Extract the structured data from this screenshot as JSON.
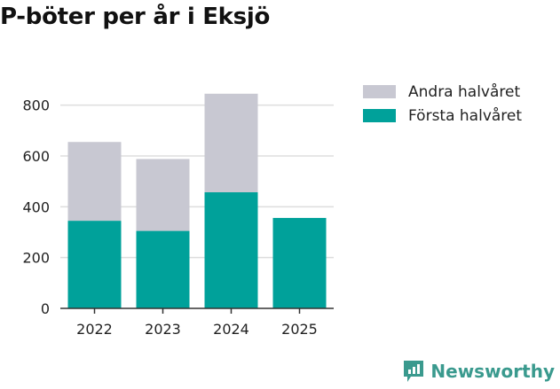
{
  "title": "P-böter per år i Eksjö",
  "brand": {
    "name": "Newsworthy",
    "logo_icon": "newsworthy-logo-icon"
  },
  "colors": {
    "andra": "#c8c8d2",
    "forsta": "#00a19a",
    "axis": "#333333",
    "grid": "#dddddd",
    "brand": "#3a9a8e"
  },
  "chart_data": {
    "type": "bar",
    "stacked": true,
    "categories": [
      "2022",
      "2023",
      "2024",
      "2025"
    ],
    "series": [
      {
        "name": "Första halvåret",
        "values": [
          345,
          305,
          457,
          356
        ],
        "color": "#00a19a"
      },
      {
        "name": "Andra halvåret",
        "values": [
          310,
          283,
          388,
          0
        ],
        "color": "#c8c8d2"
      }
    ],
    "ylim": [
      0,
      900
    ],
    "yticks": [
      0,
      200,
      400,
      600,
      800
    ],
    "grid": true,
    "legend_position": "top-right",
    "legend_order": [
      "Andra halvåret",
      "Första halvåret"
    ]
  }
}
